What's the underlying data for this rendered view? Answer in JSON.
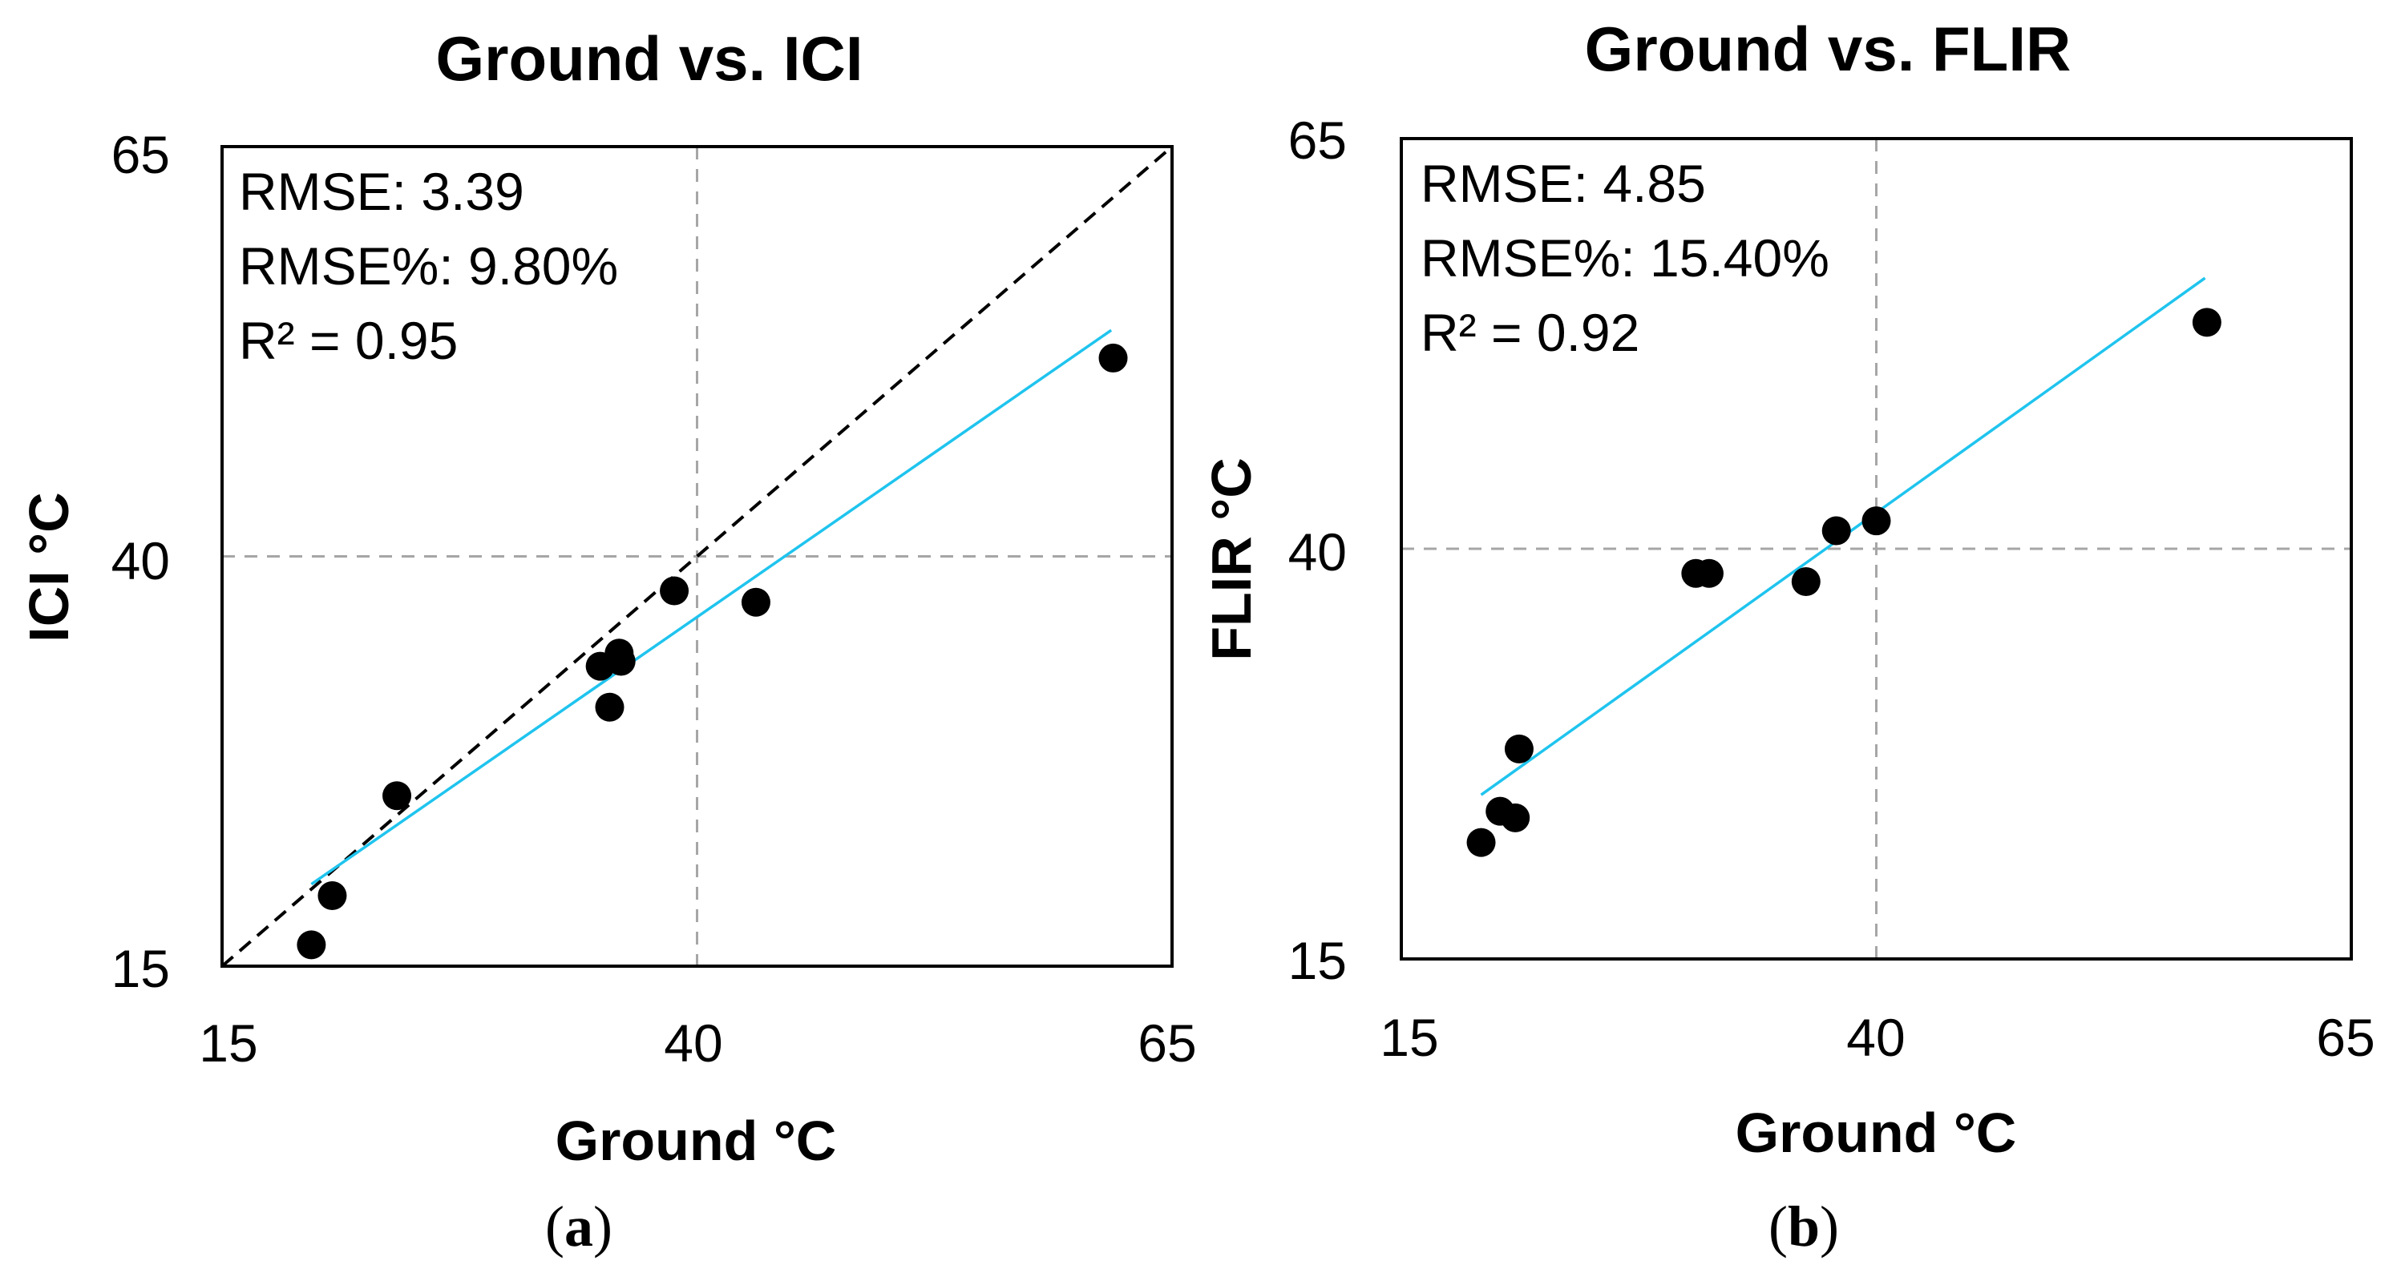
{
  "colors": {
    "points": "#000000",
    "fit_line": "#1fc4ee",
    "identity_line": "#000000",
    "ref_lines": "#a6a6a6",
    "frame": "#000000"
  },
  "chart_data": [
    {
      "type": "scatter",
      "panel_label": "a",
      "title": "Ground vs. ICI",
      "xlabel": "Ground °C",
      "ylabel": "ICI °C",
      "xlim": [
        15,
        65
      ],
      "ylim": [
        15,
        65
      ],
      "xticks": [
        "15",
        "40",
        "65"
      ],
      "yticks": [
        "15",
        "40",
        "65"
      ],
      "stats": [
        "RMSE: 3.39",
        "RMSE%: 9.80%",
        "R² = 0.95"
      ],
      "x": [
        19.7,
        20.8,
        24.2,
        34.9,
        35.9,
        36.0,
        35.4,
        38.8,
        43.1,
        61.9
      ],
      "y": [
        16.3,
        19.3,
        25.4,
        33.3,
        34.1,
        33.6,
        30.8,
        37.9,
        37.2,
        52.1
      ],
      "fit_line": {
        "x": [
          19.7,
          61.8
        ],
        "y": [
          20.0,
          53.8
        ]
      },
      "identity_line": true,
      "ref_x": 40,
      "ref_y": 40
    },
    {
      "type": "scatter",
      "panel_label": "b",
      "title": "Ground vs. FLIR",
      "xlabel": "Ground °C",
      "ylabel": "FLIR °C",
      "xlim": [
        15,
        65
      ],
      "ylim": [
        15,
        65
      ],
      "xticks": [
        "15",
        "40",
        "65"
      ],
      "yticks": [
        "15",
        "40",
        "65"
      ],
      "stats": [
        "RMSE: 4.85",
        "RMSE%: 15.40%",
        "R² = 0.92"
      ],
      "x": [
        19.2,
        20.2,
        21.0,
        21.2,
        30.5,
        31.2,
        36.3,
        37.9,
        40.0,
        57.4
      ],
      "y": [
        22.1,
        24.0,
        23.6,
        27.8,
        38.5,
        38.5,
        38.0,
        41.1,
        41.7,
        53.8
      ],
      "fit_line": {
        "x": [
          19.2,
          57.3
        ],
        "y": [
          25.0,
          56.5
        ]
      },
      "identity_line": false,
      "ref_x": 40,
      "ref_y": 40
    }
  ]
}
